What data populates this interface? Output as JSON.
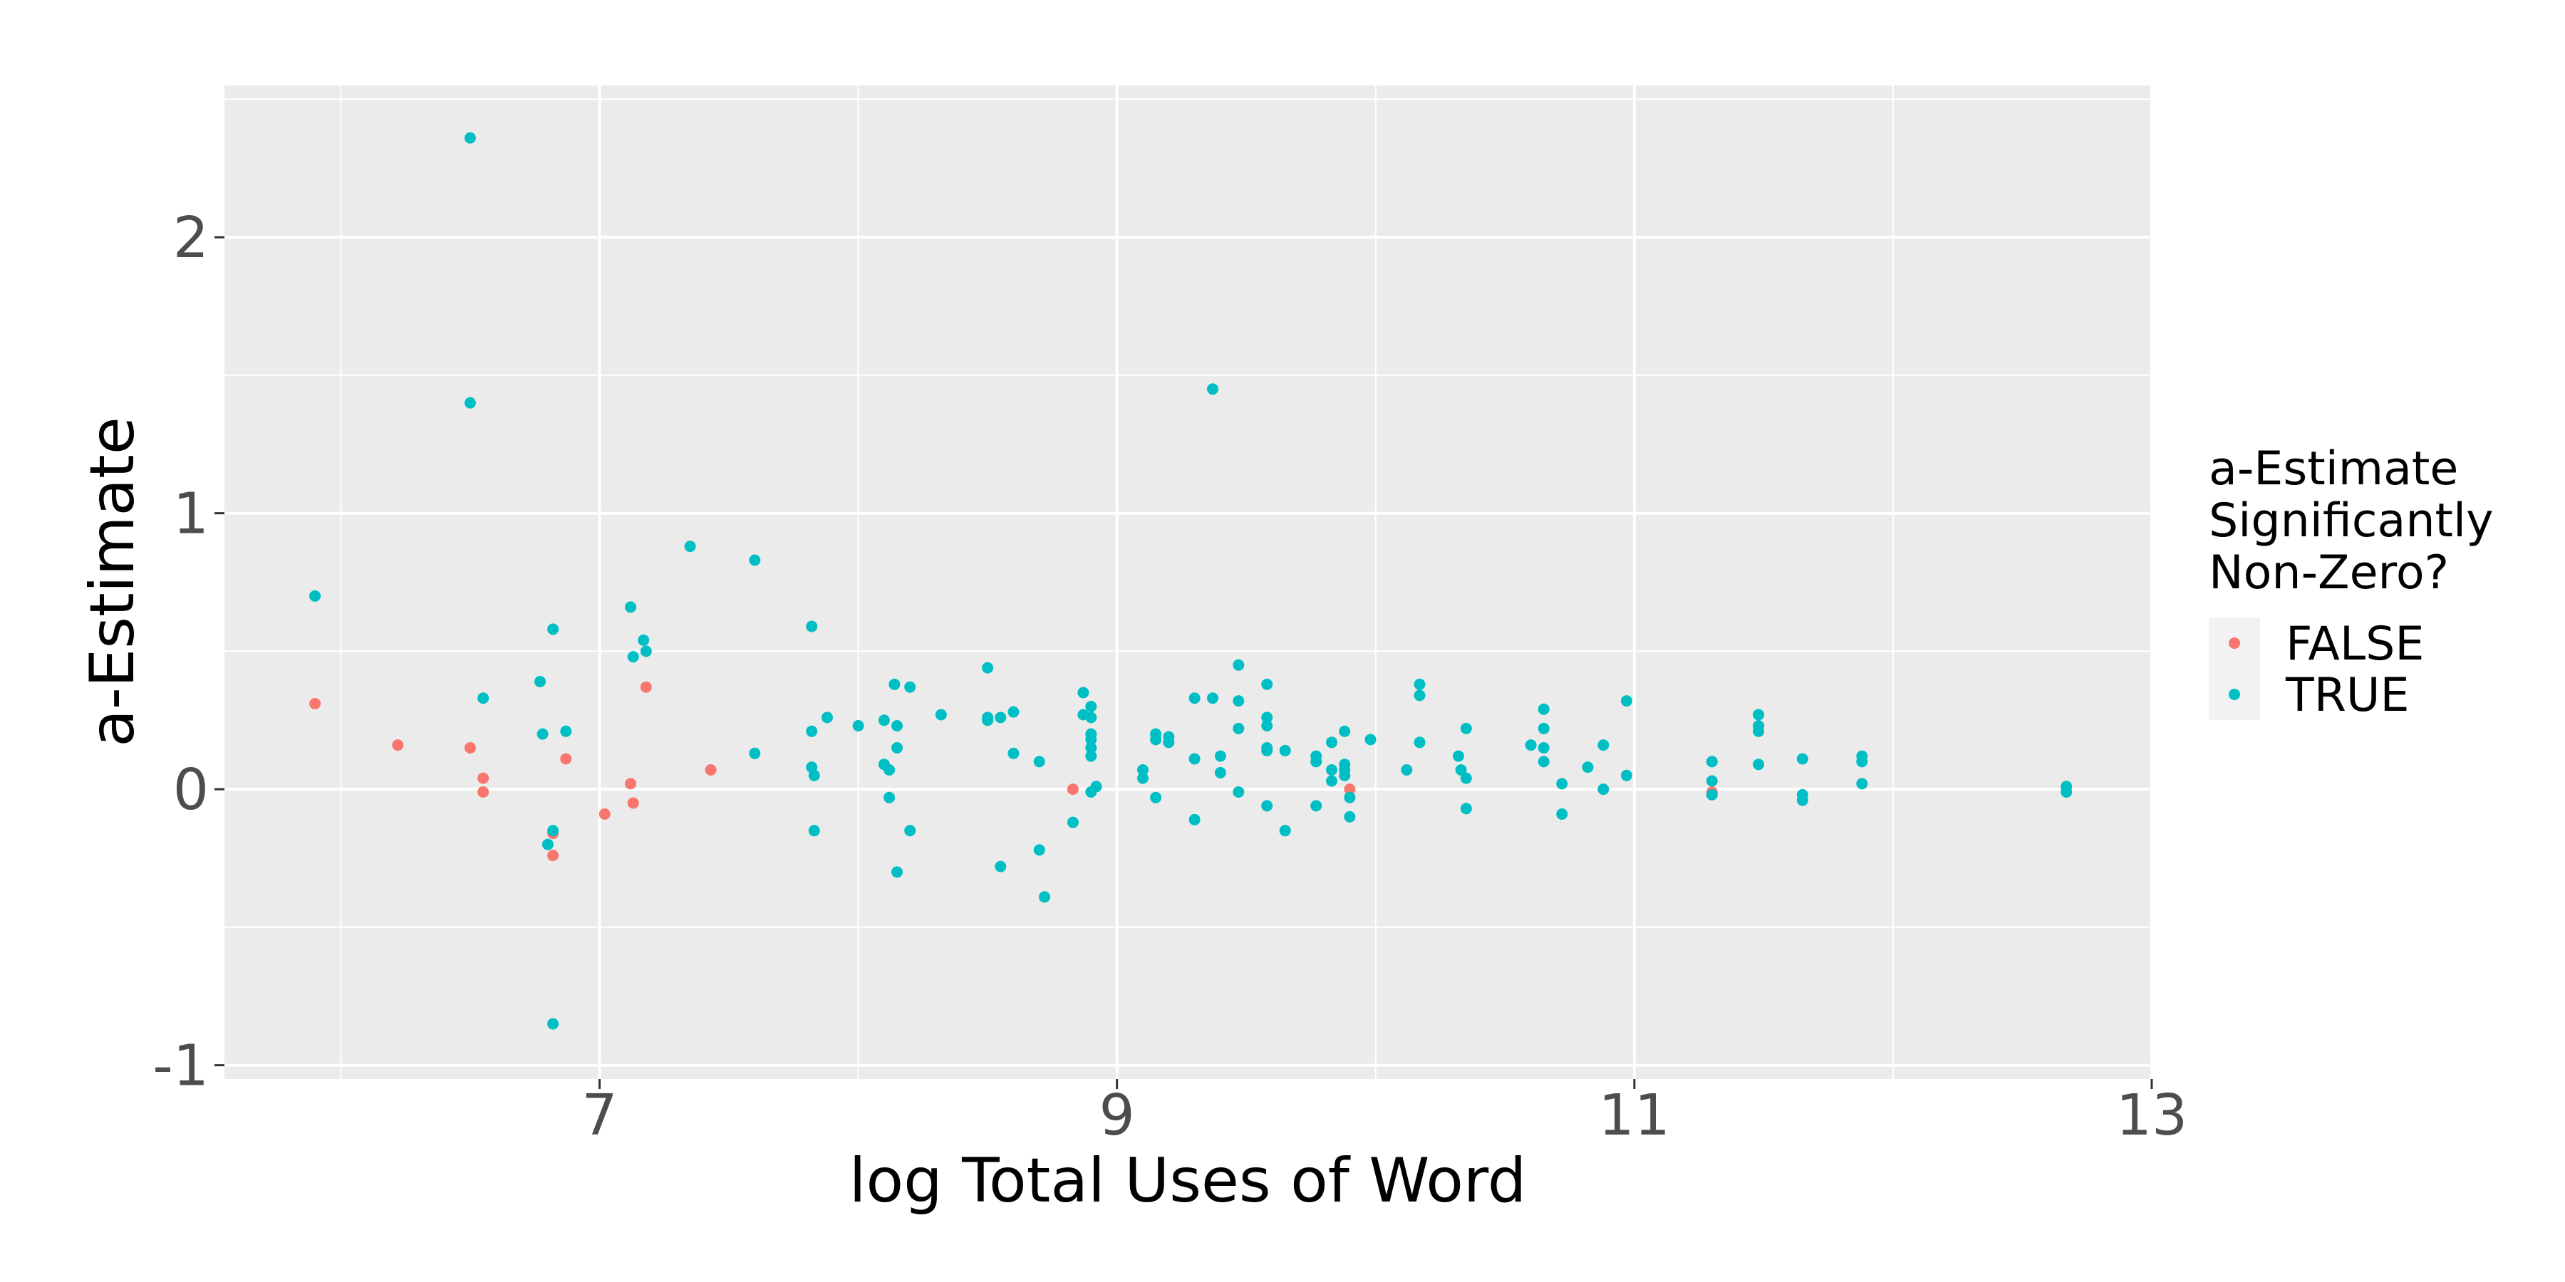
{
  "chart_data": {
    "type": "scatter",
    "title": "",
    "xlabel": "log Total Uses of Word",
    "ylabel": "a-Estimate",
    "xlim": [
      5.55,
      13.0
    ],
    "ylim": [
      -1.05,
      2.55
    ],
    "x_ticks": [
      7,
      9,
      11,
      13
    ],
    "x_tick_labels": [
      "7",
      "9",
      "11",
      "13"
    ],
    "y_ticks": [
      -1,
      0,
      1,
      2
    ],
    "y_tick_labels": [
      "-1",
      "0",
      "1",
      "2"
    ],
    "grid": true,
    "legend": {
      "title_lines": [
        "a-Estimate",
        "Significantly",
        "Non-Zero?"
      ],
      "position": "right"
    },
    "series": [
      {
        "name": "FALSE",
        "color": "#F8766D",
        "points": [
          [
            5.9,
            0.31
          ],
          [
            6.22,
            0.16
          ],
          [
            6.5,
            0.15
          ],
          [
            6.55,
            0.04
          ],
          [
            6.55,
            -0.01
          ],
          [
            6.82,
            -0.16
          ],
          [
            6.82,
            -0.24
          ],
          [
            6.87,
            0.11
          ],
          [
            7.02,
            -0.09
          ],
          [
            7.12,
            0.02
          ],
          [
            7.13,
            -0.05
          ],
          [
            7.18,
            0.37
          ],
          [
            7.43,
            0.07
          ],
          [
            8.83,
            0.0
          ],
          [
            9.9,
            0.0
          ],
          [
            11.3,
            -0.01
          ]
        ]
      },
      {
        "name": "TRUE",
        "color": "#00BFC4",
        "points": [
          [
            5.9,
            0.7
          ],
          [
            6.5,
            2.36
          ],
          [
            6.5,
            1.4
          ],
          [
            6.55,
            0.33
          ],
          [
            6.77,
            0.39
          ],
          [
            6.78,
            0.2
          ],
          [
            6.8,
            -0.2
          ],
          [
            6.82,
            0.58
          ],
          [
            6.82,
            -0.15
          ],
          [
            6.82,
            -0.85
          ],
          [
            6.87,
            0.21
          ],
          [
            7.12,
            0.66
          ],
          [
            7.13,
            0.48
          ],
          [
            7.17,
            0.54
          ],
          [
            7.18,
            0.5
          ],
          [
            7.35,
            0.88
          ],
          [
            7.6,
            0.83
          ],
          [
            7.6,
            0.13
          ],
          [
            7.82,
            0.59
          ],
          [
            7.82,
            0.21
          ],
          [
            7.82,
            0.08
          ],
          [
            7.83,
            0.05
          ],
          [
            7.83,
            -0.15
          ],
          [
            7.88,
            0.26
          ],
          [
            8.0,
            0.23
          ],
          [
            8.1,
            0.25
          ],
          [
            8.1,
            0.09
          ],
          [
            8.12,
            0.07
          ],
          [
            8.12,
            -0.03
          ],
          [
            8.14,
            0.38
          ],
          [
            8.15,
            0.15
          ],
          [
            8.15,
            0.23
          ],
          [
            8.15,
            -0.3
          ],
          [
            8.2,
            0.37
          ],
          [
            8.2,
            -0.15
          ],
          [
            8.32,
            0.27
          ],
          [
            8.5,
            0.44
          ],
          [
            8.5,
            0.26
          ],
          [
            8.5,
            0.25
          ],
          [
            8.55,
            0.26
          ],
          [
            8.55,
            -0.28
          ],
          [
            8.6,
            0.28
          ],
          [
            8.6,
            0.13
          ],
          [
            8.7,
            0.1
          ],
          [
            8.7,
            -0.22
          ],
          [
            8.72,
            -0.39
          ],
          [
            8.83,
            -0.12
          ],
          [
            8.87,
            0.35
          ],
          [
            8.87,
            0.27
          ],
          [
            8.9,
            0.3
          ],
          [
            8.9,
            0.26
          ],
          [
            8.9,
            0.2
          ],
          [
            8.9,
            0.18
          ],
          [
            8.9,
            0.15
          ],
          [
            8.9,
            0.12
          ],
          [
            8.9,
            -0.01
          ],
          [
            8.92,
            0.01
          ],
          [
            9.1,
            0.07
          ],
          [
            9.1,
            0.04
          ],
          [
            9.15,
            0.2
          ],
          [
            9.15,
            0.18
          ],
          [
            9.15,
            -0.03
          ],
          [
            9.2,
            0.19
          ],
          [
            9.2,
            0.17
          ],
          [
            9.3,
            0.33
          ],
          [
            9.3,
            0.11
          ],
          [
            9.3,
            -0.11
          ],
          [
            9.37,
            1.45
          ],
          [
            9.37,
            0.33
          ],
          [
            9.4,
            0.12
          ],
          [
            9.4,
            0.06
          ],
          [
            9.47,
            0.45
          ],
          [
            9.47,
            0.32
          ],
          [
            9.47,
            0.22
          ],
          [
            9.47,
            -0.01
          ],
          [
            9.58,
            0.38
          ],
          [
            9.58,
            0.26
          ],
          [
            9.58,
            0.23
          ],
          [
            9.58,
            0.15
          ],
          [
            9.58,
            0.14
          ],
          [
            9.58,
            -0.06
          ],
          [
            9.65,
            0.14
          ],
          [
            9.65,
            -0.15
          ],
          [
            9.77,
            0.12
          ],
          [
            9.77,
            0.1
          ],
          [
            9.77,
            -0.06
          ],
          [
            9.83,
            0.17
          ],
          [
            9.83,
            0.07
          ],
          [
            9.83,
            0.03
          ],
          [
            9.88,
            0.21
          ],
          [
            9.88,
            0.09
          ],
          [
            9.88,
            0.07
          ],
          [
            9.88,
            0.05
          ],
          [
            9.9,
            -0.03
          ],
          [
            9.9,
            -0.1
          ],
          [
            9.98,
            0.18
          ],
          [
            10.12,
            0.07
          ],
          [
            10.17,
            0.38
          ],
          [
            10.17,
            0.34
          ],
          [
            10.17,
            0.17
          ],
          [
            10.32,
            0.12
          ],
          [
            10.33,
            0.07
          ],
          [
            10.35,
            0.22
          ],
          [
            10.35,
            0.04
          ],
          [
            10.35,
            -0.07
          ],
          [
            10.6,
            0.16
          ],
          [
            10.65,
            0.29
          ],
          [
            10.65,
            0.22
          ],
          [
            10.65,
            0.15
          ],
          [
            10.65,
            0.1
          ],
          [
            10.72,
            0.02
          ],
          [
            10.72,
            -0.09
          ],
          [
            10.82,
            0.08
          ],
          [
            10.88,
            0.16
          ],
          [
            10.88,
            0.0
          ],
          [
            10.97,
            0.32
          ],
          [
            10.97,
            0.05
          ],
          [
            11.3,
            0.1
          ],
          [
            11.3,
            0.03
          ],
          [
            11.3,
            -0.02
          ],
          [
            11.48,
            0.27
          ],
          [
            11.48,
            0.23
          ],
          [
            11.48,
            0.21
          ],
          [
            11.48,
            0.09
          ],
          [
            11.65,
            0.11
          ],
          [
            11.65,
            -0.02
          ],
          [
            11.65,
            -0.04
          ],
          [
            11.88,
            0.12
          ],
          [
            11.88,
            0.1
          ],
          [
            11.88,
            0.02
          ],
          [
            12.67,
            0.01
          ],
          [
            12.67,
            -0.01
          ]
        ]
      }
    ]
  }
}
